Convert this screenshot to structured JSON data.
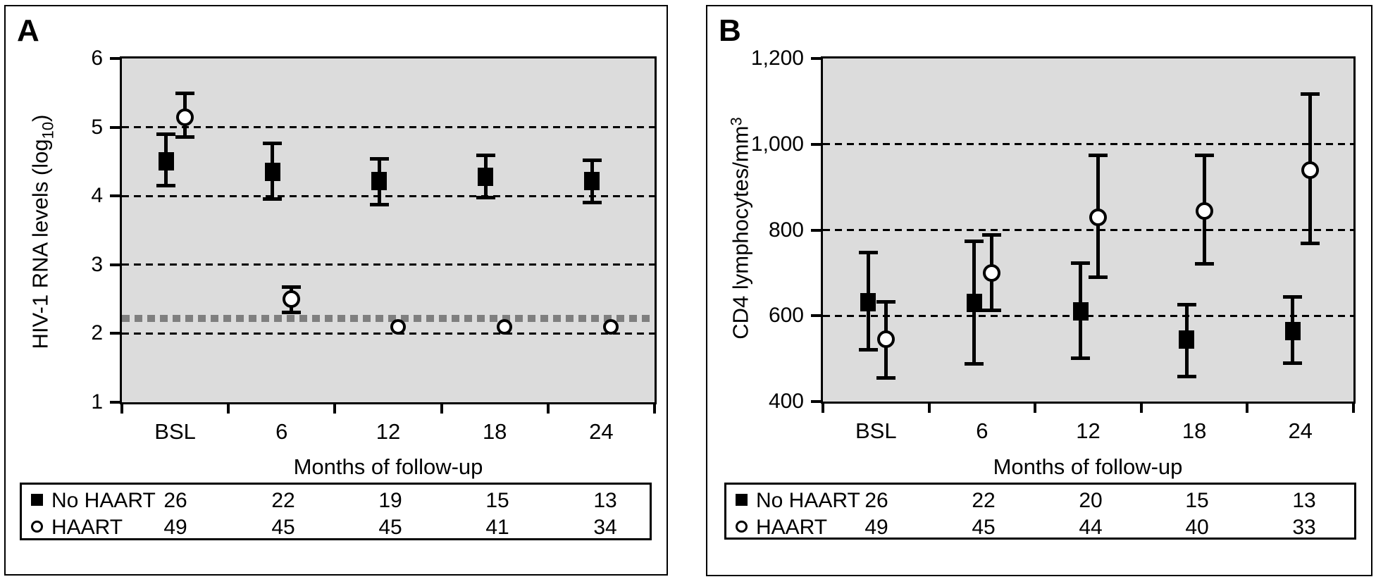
{
  "figure": {
    "background": "#ffffff",
    "border_color": "#000000",
    "plot_background": "#dcdcdc",
    "line_color": "#000000",
    "detection_limit_color": "#7f7f7f",
    "panels": [
      {
        "letter": "A",
        "ylabel_prefix": "HIV-1 RNA levels (log",
        "ylabel_sub": "10",
        "ylabel_sup": "",
        "ylabel_suffix": ")",
        "xlabel": "Months of follow-up"
      },
      {
        "letter": "B",
        "ylabel_prefix": "CD4 lymphocytes/mm",
        "ylabel_sub": "",
        "ylabel_sup": "3",
        "ylabel_suffix": "",
        "xlabel": "Months of follow-up"
      }
    ]
  },
  "chart_data": [
    {
      "type": "scatter",
      "title": "A",
      "xlabel": "Months of follow-up",
      "ylabel": "HIV-1 RNA levels (log10)",
      "categories": [
        "BSL",
        "6",
        "12",
        "18",
        "24"
      ],
      "ylim": [
        1,
        6
      ],
      "yticks": [
        {
          "value": 6,
          "label": "6"
        },
        {
          "value": 5,
          "label": "5"
        },
        {
          "value": 4,
          "label": "4"
        },
        {
          "value": 3,
          "label": "3"
        },
        {
          "value": 2,
          "label": "2"
        },
        {
          "value": 1,
          "label": "1"
        }
      ],
      "gridlines": [
        5,
        4,
        3,
        2
      ],
      "grid_style": "dashed",
      "detection_limit_line": {
        "value": 2.22,
        "color": "#7f7f7f",
        "style": "thick-dashed"
      },
      "legend_position": "table-below",
      "series": [
        {
          "name": "No HAART",
          "marker": "filled-square",
          "values": [
            4.5,
            4.35,
            4.22,
            4.28,
            4.22
          ],
          "err_lo": [
            4.15,
            3.95,
            3.87,
            3.97,
            3.9
          ],
          "err_hi": [
            4.9,
            4.77,
            4.55,
            4.6,
            4.53
          ],
          "counts": [
            26,
            22,
            19,
            15,
            13
          ]
        },
        {
          "name": "HAART",
          "marker": "open-circle",
          "values": [
            5.15,
            2.5,
            2.1,
            2.1,
            2.1
          ],
          "err_lo": [
            4.85,
            2.3,
            null,
            null,
            null
          ],
          "err_hi": [
            5.5,
            2.68,
            null,
            null,
            null
          ],
          "counts": [
            49,
            45,
            45,
            41,
            34
          ]
        }
      ]
    },
    {
      "type": "scatter",
      "title": "B",
      "xlabel": "Months of follow-up",
      "ylabel": "CD4 lymphocytes/mm3",
      "categories": [
        "BSL",
        "6",
        "12",
        "18",
        "24"
      ],
      "ylim": [
        400,
        1200
      ],
      "yticks": [
        {
          "value": 1200,
          "label": "1,200"
        },
        {
          "value": 1000,
          "label": "1,000"
        },
        {
          "value": 800,
          "label": "800"
        },
        {
          "value": 600,
          "label": "600"
        },
        {
          "value": 400,
          "label": "400"
        }
      ],
      "gridlines": [
        1000,
        800,
        600
      ],
      "grid_style": "dashed",
      "detection_limit_line": null,
      "legend_position": "table-below",
      "series": [
        {
          "name": "No HAART",
          "marker": "filled-square",
          "values": [
            632,
            630,
            610,
            545,
            565
          ],
          "err_lo": [
            520,
            487,
            500,
            458,
            488
          ],
          "err_hi": [
            748,
            775,
            723,
            627,
            645
          ],
          "counts": [
            26,
            22,
            20,
            15,
            13
          ]
        },
        {
          "name": "HAART",
          "marker": "open-circle",
          "values": [
            545,
            700,
            830,
            845,
            940
          ],
          "err_lo": [
            455,
            612,
            690,
            720,
            768
          ],
          "err_hi": [
            633,
            790,
            975,
            975,
            1118
          ],
          "counts": [
            49,
            45,
            44,
            40,
            33
          ]
        }
      ]
    }
  ]
}
